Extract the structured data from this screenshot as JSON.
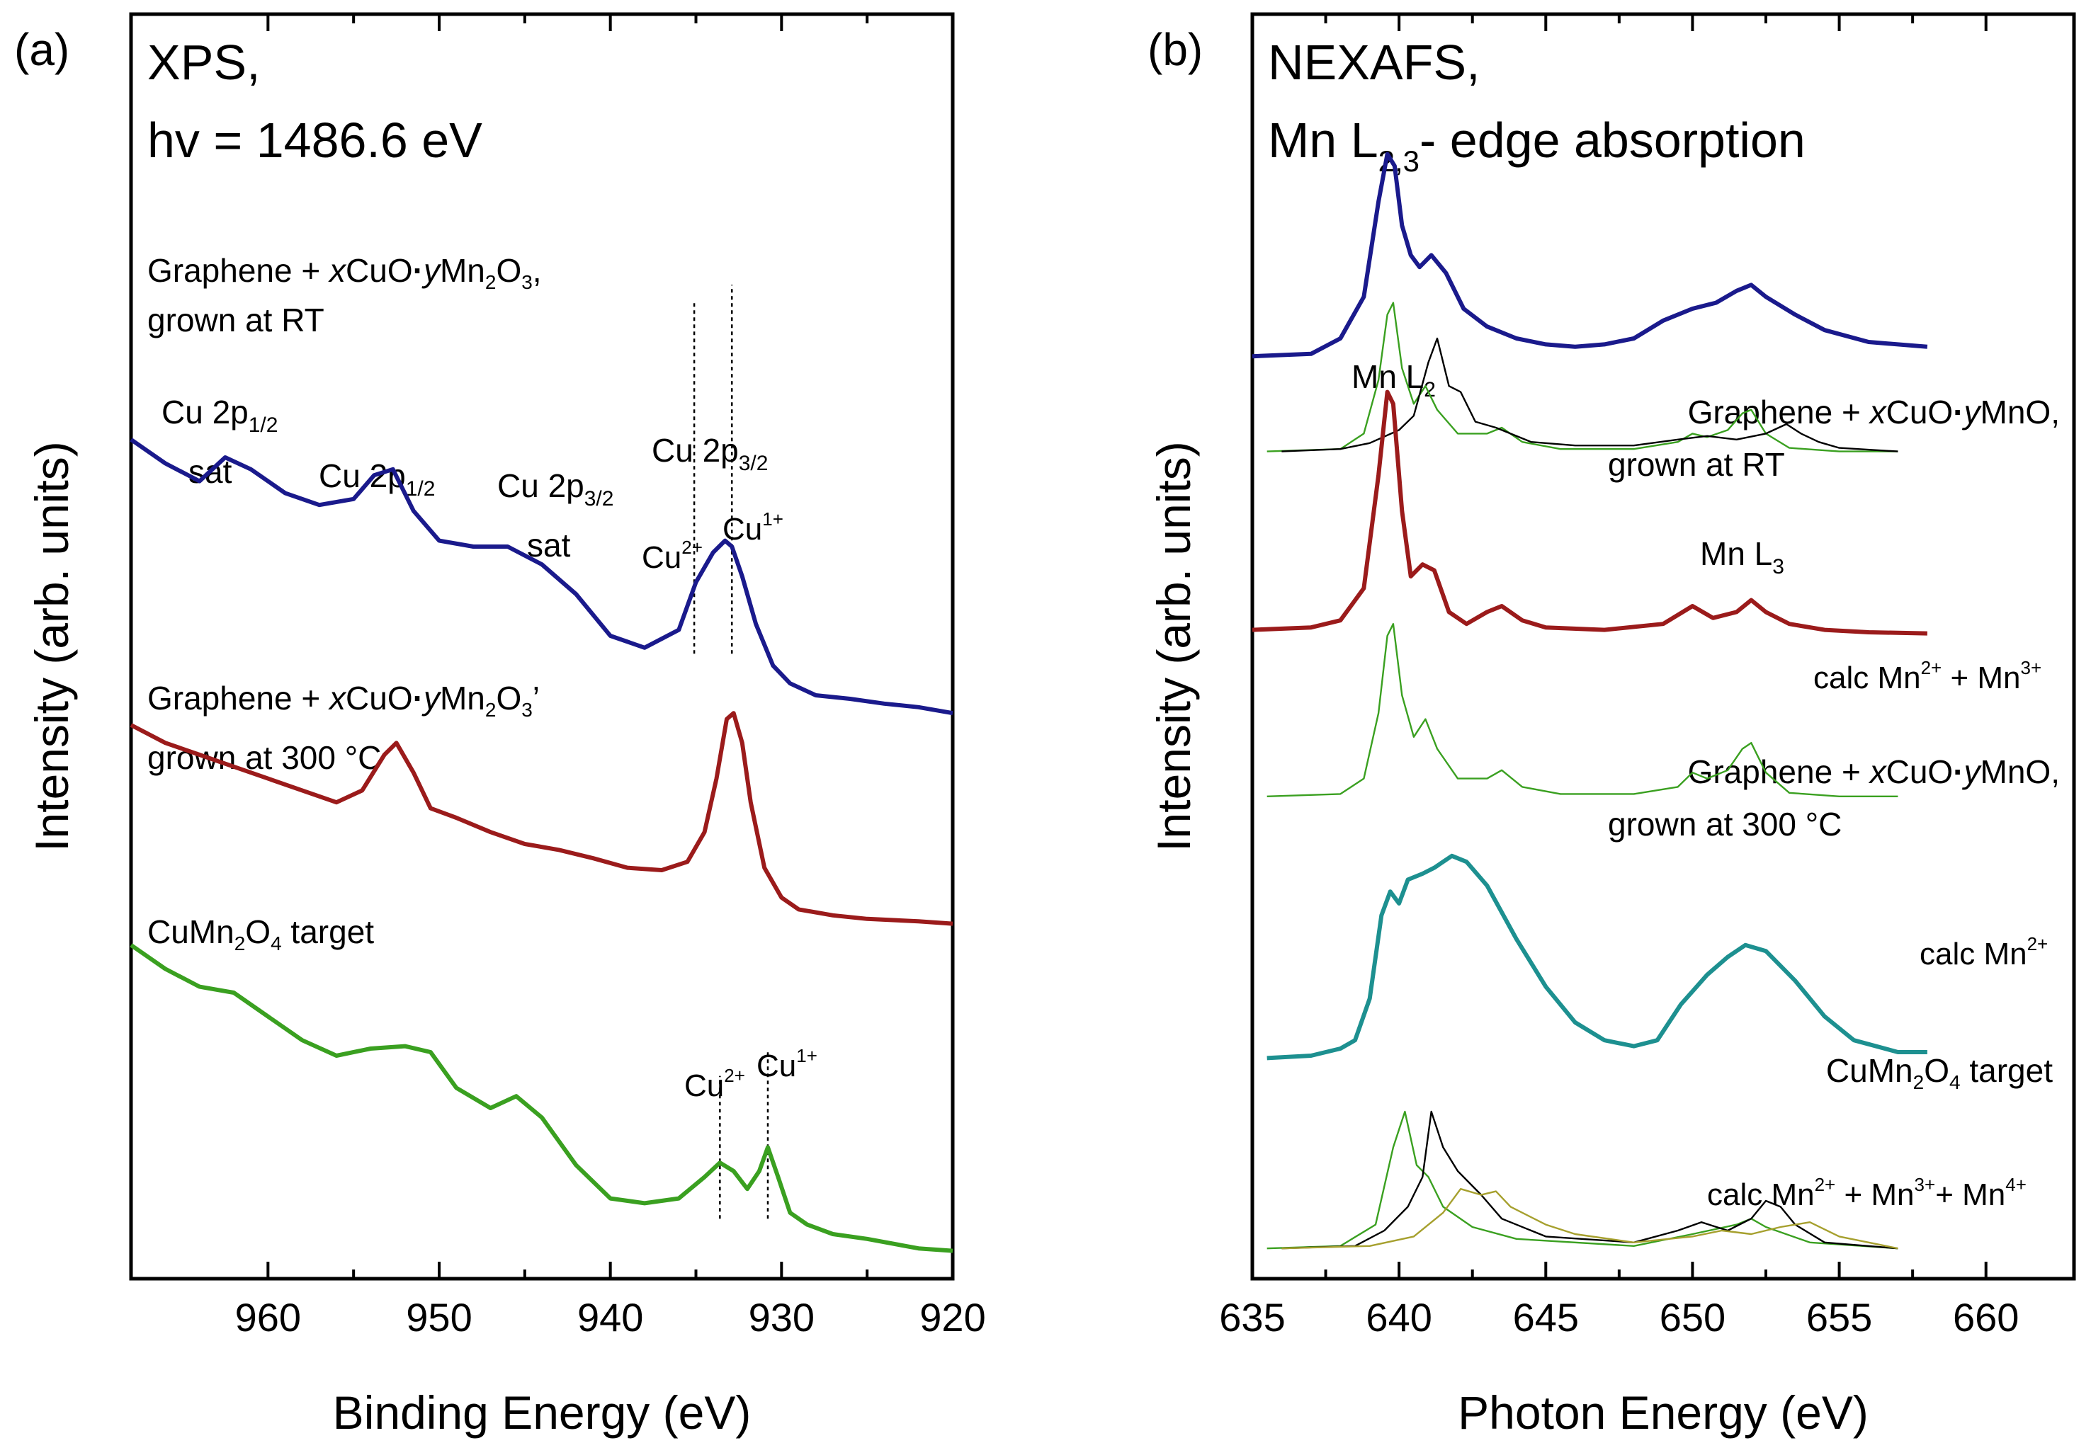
{
  "colors": {
    "blue": "#1a1a8c",
    "red": "#9b1b1b",
    "green": "#3aa020",
    "teal": "#1d9090",
    "darkgreen": "#1f4a1f",
    "olive": "#a6a02e",
    "black": "#000000"
  },
  "chart_data": [
    {
      "panel": "(a)",
      "type": "line",
      "title": "XPS,",
      "title_sub": "hv = 1486.6 eV",
      "xlabel": "Binding Energy (eV)",
      "ylabel": "Intensity (arb. units)",
      "xlim": [
        968,
        920
      ],
      "ylim": [
        0,
        10
      ],
      "x_ticks": [
        960,
        950,
        940,
        930,
        920
      ],
      "x_tick_labels": [
        "960",
        "950",
        "940",
        "930",
        "920"
      ],
      "peak_labels": [
        {
          "text": "Cu 2p",
          "sub": "1/2",
          "line2": "sat"
        },
        {
          "text": "Cu 2p",
          "sub": "1/2",
          "line2": ""
        },
        {
          "text": "Cu 2p",
          "sub": "3/2",
          "line2": "sat"
        },
        {
          "text": "Cu 2p",
          "sub": "3/2",
          "line2": ""
        }
      ],
      "species_labels": [
        "Cu",
        "2+",
        "Cu",
        "1+"
      ],
      "reference_lines_eV": [
        935.1,
        932.9,
        933.6,
        930.8
      ],
      "series": [
        {
          "name": "Graphene + xCuO•yMn2O3, grown at RT",
          "color": "blue",
          "label_parts": [
            "Graphene + ",
            "x",
            "CuO",
            "y",
            "Mn",
            "2",
            "O",
            "3",
            ","
          ],
          "label_line2": "grown at RT",
          "x": [
            968,
            966,
            964,
            962.5,
            961,
            959,
            957,
            955,
            953.8,
            952.7,
            951.5,
            950,
            948,
            946,
            944,
            942,
            940,
            938,
            936,
            935,
            934,
            933.3,
            932.9,
            932.3,
            931.5,
            930.5,
            929.5,
            928,
            926,
            924,
            922,
            920
          ],
          "y": [
            6.9,
            6.7,
            6.55,
            6.75,
            6.65,
            6.45,
            6.35,
            6.4,
            6.6,
            6.65,
            6.3,
            6.05,
            6.0,
            6.0,
            5.85,
            5.6,
            5.25,
            5.15,
            5.3,
            5.7,
            5.95,
            6.05,
            6.0,
            5.75,
            5.35,
            5.0,
            4.85,
            4.75,
            4.72,
            4.68,
            4.65,
            4.6
          ]
        },
        {
          "name": "Graphene + xCuO•yMn2O3, grown at 300 °C",
          "color": "red",
          "label_parts": [
            "Graphene + ",
            "x",
            "CuO",
            "y",
            "Mn",
            "2",
            "O",
            "3",
            "’"
          ],
          "label_line2": "grown at 300 °C",
          "x": [
            968,
            966,
            964,
            962,
            960,
            958,
            956,
            954.5,
            953.2,
            952.5,
            951.5,
            950.5,
            949,
            947,
            945,
            943,
            941,
            939,
            937,
            935.5,
            934.5,
            933.8,
            933.2,
            932.8,
            932.3,
            931.8,
            931,
            930,
            929,
            927,
            925,
            922,
            920
          ],
          "y": [
            4.5,
            4.35,
            4.25,
            4.15,
            4.05,
            3.95,
            3.85,
            3.95,
            4.25,
            4.35,
            4.1,
            3.8,
            3.72,
            3.6,
            3.5,
            3.45,
            3.38,
            3.3,
            3.28,
            3.35,
            3.6,
            4.05,
            4.55,
            4.6,
            4.35,
            3.85,
            3.3,
            3.05,
            2.95,
            2.9,
            2.87,
            2.85,
            2.83
          ]
        },
        {
          "name": "CuMn2O4 target",
          "color": "green",
          "label_parts": [
            "CuMn",
            "2",
            "O",
            "4",
            " target"
          ],
          "x": [
            968,
            966,
            964,
            962,
            960,
            958,
            956,
            954,
            952,
            950.5,
            949,
            947,
            945.5,
            944,
            942,
            940,
            938,
            936,
            934.5,
            933.6,
            932.8,
            932,
            931.3,
            930.8,
            930.2,
            929.5,
            928.5,
            927,
            925,
            922,
            920
          ],
          "y": [
            2.65,
            2.45,
            2.3,
            2.25,
            2.05,
            1.85,
            1.72,
            1.78,
            1.8,
            1.75,
            1.45,
            1.28,
            1.38,
            1.2,
            0.8,
            0.52,
            0.48,
            0.52,
            0.7,
            0.82,
            0.75,
            0.6,
            0.75,
            0.95,
            0.7,
            0.4,
            0.3,
            0.22,
            0.18,
            0.1,
            0.08
          ]
        }
      ]
    },
    {
      "panel": "(b)",
      "type": "line",
      "title": "NEXAFS,",
      "title_sub_parts": [
        "Mn L",
        "2,3",
        "- edge absorption"
      ],
      "xlabel": "Photon Energy (eV)",
      "ylabel": "Intensity (arb. units)",
      "xlim": [
        635,
        663
      ],
      "ylim": [
        0,
        10
      ],
      "x_ticks": [
        635,
        640,
        645,
        650,
        655,
        660
      ],
      "x_tick_labels": [
        "635",
        "640",
        "645",
        "650",
        "655",
        "660"
      ],
      "edge_labels": [
        {
          "text": "Mn L",
          "sub": "2"
        },
        {
          "text": "Mn L",
          "sub": "3"
        }
      ],
      "calc_labels": [
        {
          "parts": [
            "calc Mn",
            "2+",
            " + Mn",
            "3+"
          ]
        },
        {
          "parts": [
            "calc Mn",
            "2+"
          ]
        },
        {
          "parts": [
            "calc Mn",
            "2+",
            " + Mn",
            "3+",
            "+ Mn",
            "4+"
          ]
        }
      ],
      "series": [
        {
          "name": "Graphene + xCuO•yMnO, grown at RT",
          "color": "blue",
          "label_parts": [
            "Graphene + ",
            "x",
            "CuO",
            "y",
            "MnO,"
          ],
          "label_line2": "grown at RT",
          "x": [
            635,
            637,
            638,
            638.8,
            639.3,
            639.6,
            639.85,
            640.1,
            640.4,
            640.7,
            641.1,
            641.6,
            642.2,
            643,
            644,
            645,
            646,
            647,
            648,
            649,
            650,
            650.8,
            651.5,
            652,
            652.5,
            653.5,
            654.5,
            656,
            658
          ],
          "y": [
            7.6,
            7.62,
            7.75,
            8.1,
            8.9,
            9.3,
            9.2,
            8.7,
            8.45,
            8.35,
            8.45,
            8.3,
            8.0,
            7.85,
            7.75,
            7.7,
            7.68,
            7.7,
            7.75,
            7.9,
            8.0,
            8.05,
            8.15,
            8.2,
            8.1,
            7.95,
            7.82,
            7.72,
            7.68
          ]
        },
        {
          "name": "calc Mn2+ + Mn3+ (Mn2+ component)",
          "color": "green",
          "component": true,
          "x": [
            635.5,
            638,
            638.8,
            639.3,
            639.6,
            639.8,
            640.1,
            640.5,
            640.9,
            641.3,
            642,
            643,
            643.5,
            644.2,
            645.5,
            648,
            649.5,
            650,
            650.5,
            651.2,
            651.7,
            652,
            652.5,
            653.3,
            655,
            657
          ],
          "y": [
            6.8,
            6.82,
            6.95,
            7.4,
            7.95,
            8.05,
            7.5,
            7.2,
            7.35,
            7.15,
            6.95,
            6.95,
            7.0,
            6.88,
            6.82,
            6.82,
            6.88,
            6.95,
            6.92,
            6.98,
            7.12,
            7.15,
            6.95,
            6.83,
            6.8,
            6.8
          ]
        },
        {
          "name": "calc Mn2+ + Mn3+ (Mn3+ component)",
          "color": "black",
          "component": true,
          "x": [
            636,
            638,
            639,
            640,
            640.5,
            641,
            641.3,
            641.7,
            642.1,
            642.6,
            643.3,
            644.5,
            646,
            648,
            649.5,
            650.5,
            651.5,
            652.5,
            653.2,
            653.7,
            654.3,
            655,
            657
          ],
          "y": [
            6.8,
            6.82,
            6.87,
            6.98,
            7.1,
            7.55,
            7.75,
            7.35,
            7.3,
            7.05,
            7.0,
            6.88,
            6.85,
            6.85,
            6.9,
            6.93,
            6.9,
            6.95,
            7.03,
            6.95,
            6.88,
            6.83,
            6.8
          ]
        },
        {
          "name": "Graphene + xCuO•yMnO, grown at 300 °C",
          "color": "red",
          "label_parts": [
            "Graphene + ",
            "x",
            "CuO",
            "y",
            "MnO,"
          ],
          "label_line2": "grown at 300 °C",
          "x": [
            635,
            637,
            638,
            638.8,
            639.3,
            639.6,
            639.8,
            640.1,
            640.4,
            640.8,
            641.2,
            641.7,
            642.3,
            643,
            643.5,
            644.2,
            645,
            647,
            649,
            650,
            650.7,
            651.5,
            652,
            652.5,
            653.3,
            654.5,
            656,
            658
          ],
          "y": [
            5.3,
            5.32,
            5.38,
            5.65,
            6.6,
            7.3,
            7.2,
            6.3,
            5.75,
            5.85,
            5.8,
            5.45,
            5.35,
            5.45,
            5.5,
            5.38,
            5.32,
            5.3,
            5.35,
            5.5,
            5.4,
            5.45,
            5.55,
            5.45,
            5.35,
            5.3,
            5.28,
            5.27
          ]
        },
        {
          "name": "calc Mn2+",
          "color": "green",
          "component": true,
          "x": [
            635.5,
            638,
            638.8,
            639.3,
            639.6,
            639.8,
            640.1,
            640.5,
            640.9,
            641.3,
            642,
            643,
            643.5,
            644.2,
            645.5,
            648,
            649.5,
            650,
            650.5,
            651.2,
            651.7,
            652,
            652.5,
            653.3,
            655,
            657
          ],
          "y": [
            3.9,
            3.92,
            4.05,
            4.6,
            5.25,
            5.35,
            4.75,
            4.4,
            4.55,
            4.3,
            4.05,
            4.05,
            4.12,
            3.98,
            3.92,
            3.92,
            3.98,
            4.1,
            4.05,
            4.12,
            4.3,
            4.35,
            4.1,
            3.93,
            3.9,
            3.9
          ]
        },
        {
          "name": "CuMn2O4 target",
          "color": "teal",
          "label_parts": [
            "CuMn",
            "2",
            "O",
            "4",
            " target"
          ],
          "x": [
            635.5,
            637,
            638,
            638.5,
            639,
            639.4,
            639.7,
            640,
            640.3,
            640.8,
            641.2,
            641.8,
            642.3,
            643,
            644,
            645,
            646,
            647,
            648,
            648.8,
            649.6,
            650.5,
            651.2,
            651.8,
            652.5,
            653.5,
            654.5,
            655.5,
            657,
            658
          ],
          "y": [
            1.7,
            1.72,
            1.78,
            1.85,
            2.2,
            2.9,
            3.1,
            3.0,
            3.2,
            3.25,
            3.3,
            3.4,
            3.35,
            3.15,
            2.7,
            2.3,
            2.0,
            1.85,
            1.8,
            1.85,
            2.15,
            2.4,
            2.55,
            2.65,
            2.6,
            2.35,
            2.05,
            1.85,
            1.75,
            1.75
          ]
        },
        {
          "name": "calc Mn2+ + Mn3+ + Mn4+ (Mn2+ component)",
          "color": "green",
          "component": true,
          "x": [
            635.5,
            638,
            639.2,
            639.8,
            640.2,
            640.6,
            641,
            641.5,
            642.5,
            644,
            648,
            650,
            651.5,
            652,
            652.5,
            654,
            657
          ],
          "y": [
            0.1,
            0.12,
            0.3,
            0.95,
            1.25,
            0.8,
            0.7,
            0.45,
            0.28,
            0.18,
            0.12,
            0.22,
            0.3,
            0.35,
            0.28,
            0.15,
            0.1
          ]
        },
        {
          "name": "calc Mn2+ + Mn3+ + Mn4+ (Mn3+ component)",
          "color": "black",
          "component": true,
          "x": [
            636,
            638.5,
            639.5,
            640.3,
            640.8,
            641.1,
            641.5,
            642,
            642.8,
            643.5,
            645,
            648,
            649.5,
            650.3,
            651.2,
            652,
            652.5,
            653,
            653.5,
            654.5,
            657
          ],
          "y": [
            0.1,
            0.12,
            0.25,
            0.45,
            0.7,
            1.25,
            0.95,
            0.75,
            0.55,
            0.35,
            0.2,
            0.15,
            0.25,
            0.32,
            0.25,
            0.35,
            0.5,
            0.45,
            0.3,
            0.15,
            0.1
          ]
        },
        {
          "name": "calc Mn2+ + Mn3+ + Mn4+ (Mn4+ component)",
          "color": "olive",
          "component": true,
          "x": [
            636,
            639,
            640.5,
            641.5,
            642.1,
            642.8,
            643.3,
            643.8,
            645,
            646,
            648,
            650,
            651,
            652,
            653,
            654,
            655,
            657
          ],
          "y": [
            0.1,
            0.12,
            0.2,
            0.4,
            0.6,
            0.55,
            0.58,
            0.45,
            0.3,
            0.22,
            0.15,
            0.2,
            0.25,
            0.22,
            0.28,
            0.32,
            0.2,
            0.1
          ]
        }
      ]
    }
  ]
}
